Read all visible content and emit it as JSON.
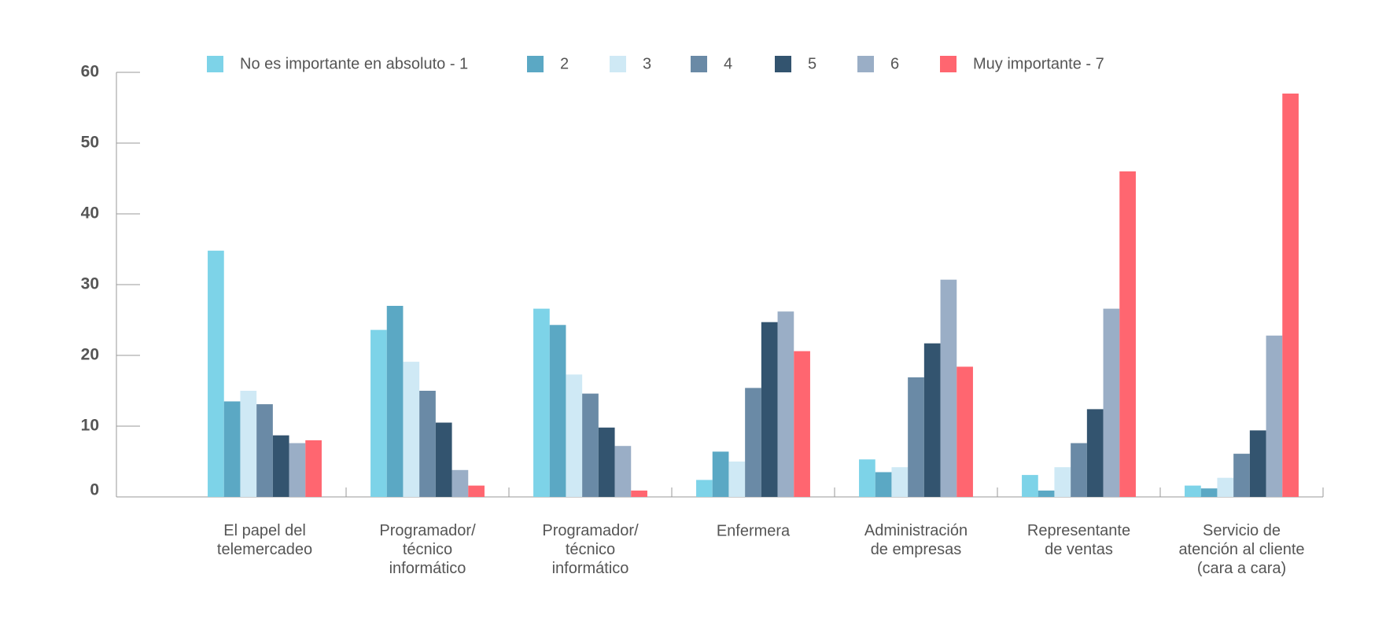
{
  "chart_data": {
    "type": "bar",
    "categories": [
      "El papel del\ntelemercadeo",
      "Programador/\ntécnico\ninformático",
      "Programador/\ntécnico\ninformático",
      "Enfermera",
      "Administración\nde empresas",
      "Representante\nde ventas",
      "Servicio de\natención al cliente\n(cara a cara)"
    ],
    "series": [
      {
        "name": "No es importante en absoluto - 1",
        "color": "#7dd3e8",
        "values": [
          34.8,
          23.6,
          26.6,
          2.4,
          5.3,
          3.1,
          1.6
        ]
      },
      {
        "name": "2",
        "color": "#5ba8c4",
        "values": [
          13.5,
          27,
          24.3,
          6.4,
          3.5,
          0.9,
          1.2
        ]
      },
      {
        "name": "3",
        "color": "#cfe9f5",
        "values": [
          15,
          19.1,
          17.3,
          5,
          4.2,
          4.2,
          2.7
        ]
      },
      {
        "name": "4",
        "color": "#6a8aa6",
        "values": [
          13.1,
          15,
          14.6,
          15.4,
          16.9,
          7.6,
          6.1
        ]
      },
      {
        "name": "5",
        "color": "#33546f",
        "values": [
          8.7,
          10.5,
          9.8,
          24.7,
          21.7,
          12.4,
          9.4
        ]
      },
      {
        "name": "6",
        "color": "#9aaec6",
        "values": [
          7.6,
          3.8,
          7.2,
          26.2,
          30.7,
          26.6,
          22.8
        ]
      },
      {
        "name": "Muy importante - 7",
        "color": "#ff6670",
        "values": [
          8,
          1.6,
          0.9,
          20.6,
          18.4,
          46,
          57
        ]
      }
    ],
    "ylim": [
      0,
      60
    ],
    "yticks": [
      0,
      10,
      20,
      30,
      40,
      50,
      60
    ],
    "grid": false
  }
}
